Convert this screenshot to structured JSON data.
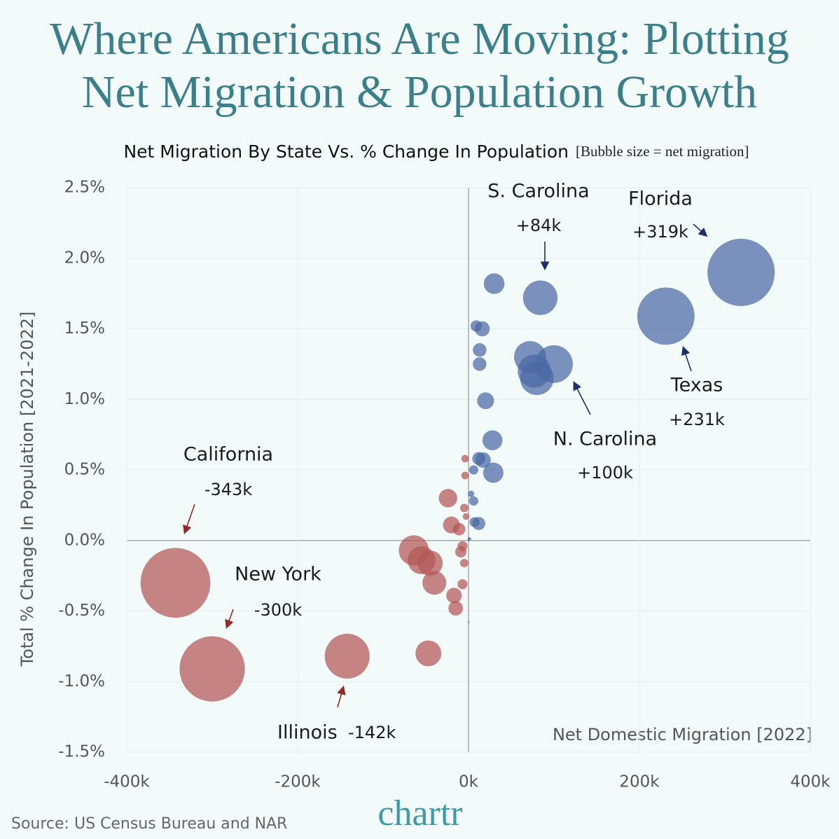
{
  "chart_data": {
    "type": "bubble",
    "title": [
      "Where Americans Are Moving: Plotting",
      "Net Migration & Population Growth"
    ],
    "subtitle": "Net Migration By State Vs. % Change In Population",
    "subtitle_note": "[Bubble size = net migration]",
    "x_label": "Net Domestic Migration [2022]",
    "y_label": "Total % Change In Population [2021-2022]",
    "source": "Source: US Census Bureau and NAR",
    "brand": "chartr",
    "xlim": [
      -400,
      400
    ],
    "xticks": [
      {
        "value": -400,
        "label": "-400k"
      },
      {
        "value": -200,
        "label": "-200k"
      },
      {
        "value": 0,
        "label": "0k"
      },
      {
        "value": 200,
        "label": "200k"
      },
      {
        "value": 400,
        "label": "400k"
      }
    ],
    "ylim": [
      -1.5,
      2.5
    ],
    "yticks": [
      {
        "value": 2.5,
        "label": "2.5%"
      },
      {
        "value": 2.0,
        "label": "2.0%"
      },
      {
        "value": 1.5,
        "label": "1.5%"
      },
      {
        "value": 1.0,
        "label": "1.0%"
      },
      {
        "value": 0.5,
        "label": "0.5%"
      },
      {
        "value": 0.0,
        "label": "0.0%"
      },
      {
        "value": -0.5,
        "label": "-0.5%"
      },
      {
        "value": -1.0,
        "label": "-1.0%"
      },
      {
        "value": -1.5,
        "label": "-1.5%"
      }
    ],
    "grid": true,
    "series": [
      {
        "color": "#4a68a3",
        "x": [
          319,
          231,
          84,
          100,
          72,
          80,
          77,
          30,
          16,
          9,
          13,
          13,
          20,
          28,
          29,
          17,
          12,
          6,
          6,
          12,
          7,
          3,
          1
        ],
        "values": [
          1.9,
          1.59,
          1.72,
          1.25,
          1.3,
          1.15,
          1.2,
          1.82,
          1.5,
          1.52,
          1.35,
          1.25,
          0.99,
          0.71,
          0.48,
          0.57,
          0.58,
          0.5,
          0.28,
          0.12,
          0.13,
          0.33,
          0.01
        ]
      },
      {
        "color": "#b35655",
        "x": [
          -343,
          -300,
          -142,
          -47,
          -64,
          -55,
          -45,
          -40,
          -24,
          -20,
          -11,
          -17,
          -15,
          -7,
          -9,
          -5,
          -7,
          -5,
          -3,
          -4,
          -4,
          0
        ],
        "values": [
          -0.3,
          -0.91,
          -0.82,
          -0.8,
          -0.07,
          -0.14,
          -0.16,
          -0.3,
          0.3,
          0.11,
          0.08,
          -0.39,
          -0.48,
          -0.04,
          -0.08,
          -0.16,
          -0.31,
          0.23,
          0.17,
          0.46,
          0.58,
          -0.58
        ]
      }
    ],
    "annotations": [
      {
        "label": "S. Carolina",
        "value": "+84k"
      },
      {
        "label": "Florida",
        "value": "+319k"
      },
      {
        "label": "Texas",
        "value": "+231k"
      },
      {
        "label": "N. Carolina",
        "value": "+100k"
      },
      {
        "label": "California",
        "value": "-343k"
      },
      {
        "label": "New York",
        "value": "-300k"
      },
      {
        "label": "Illinois",
        "value": "-142k"
      }
    ]
  }
}
